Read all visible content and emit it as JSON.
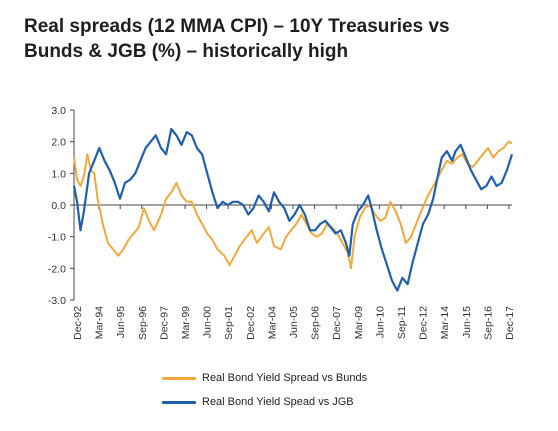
{
  "title_line1": "Real spreads (12 MMA CPI) – 10Y Treasuries vs",
  "title_line2": "Bunds & JGB (%) – historically high",
  "chart_data": {
    "type": "line",
    "title": "Real spreads (12 MMA CPI) – 10Y Treasuries vs Bunds & JGB (%) – historically high",
    "xlabel": "",
    "ylabel": "",
    "ylim": [
      -3.0,
      3.0
    ],
    "yticks": [
      "3.0",
      "2.0",
      "1.0",
      "0.0",
      "-1.0",
      "-2.0",
      "-3.0"
    ],
    "ytick_values": [
      3,
      2,
      1,
      0,
      -1,
      -2,
      -3
    ],
    "xticks": [
      "Dec-92",
      "Mar-94",
      "Jun-95",
      "Sep-96",
      "Dec-97",
      "Mar-99",
      "Jun-00",
      "Sep-01",
      "Dec-02",
      "Mar-04",
      "Jun-05",
      "Sep-06",
      "Dec-07",
      "Mar-09",
      "Jun-10",
      "Sep-11",
      "Dec-12",
      "Mar-14",
      "Jun-15",
      "Sep-16",
      "Dec-17"
    ],
    "x_range": [
      1992.92,
      2018.5
    ],
    "grid": false,
    "legend_position": "bottom",
    "series": [
      {
        "name": "Real Bond Yield Spread vs Bunds",
        "color": "#F2A93B",
        "points": [
          [
            1992.92,
            1.5
          ],
          [
            1993.1,
            0.8
          ],
          [
            1993.3,
            0.6
          ],
          [
            1993.5,
            0.9
          ],
          [
            1993.7,
            1.6
          ],
          [
            1993.9,
            1.1
          ],
          [
            1994.1,
            1.0
          ],
          [
            1994.3,
            0.2
          ],
          [
            1994.6,
            -0.6
          ],
          [
            1994.9,
            -1.2
          ],
          [
            1995.2,
            -1.4
          ],
          [
            1995.5,
            -1.6
          ],
          [
            1995.8,
            -1.4
          ],
          [
            1996.1,
            -1.1
          ],
          [
            1996.4,
            -0.9
          ],
          [
            1996.7,
            -0.7
          ],
          [
            1997.0,
            -0.1
          ],
          [
            1997.3,
            -0.5
          ],
          [
            1997.6,
            -0.8
          ],
          [
            1998.0,
            -0.3
          ],
          [
            1998.3,
            0.2
          ],
          [
            1998.6,
            0.4
          ],
          [
            1998.9,
            0.7
          ],
          [
            1999.2,
            0.3
          ],
          [
            1999.5,
            0.1
          ],
          [
            1999.8,
            0.1
          ],
          [
            2000.1,
            -0.3
          ],
          [
            2000.4,
            -0.6
          ],
          [
            2000.7,
            -0.9
          ],
          [
            2001.0,
            -1.1
          ],
          [
            2001.3,
            -1.4
          ],
          [
            2001.7,
            -1.6
          ],
          [
            2002.0,
            -1.9
          ],
          [
            2002.3,
            -1.6
          ],
          [
            2002.6,
            -1.3
          ],
          [
            2003.0,
            -1.0
          ],
          [
            2003.3,
            -0.8
          ],
          [
            2003.6,
            -1.2
          ],
          [
            2004.0,
            -0.9
          ],
          [
            2004.3,
            -0.7
          ],
          [
            2004.6,
            -1.3
          ],
          [
            2005.0,
            -1.4
          ],
          [
            2005.3,
            -1.0
          ],
          [
            2005.6,
            -0.8
          ],
          [
            2005.9,
            -0.6
          ],
          [
            2006.2,
            -0.3
          ],
          [
            2006.5,
            -0.6
          ],
          [
            2006.8,
            -0.9
          ],
          [
            2007.1,
            -1.0
          ],
          [
            2007.4,
            -0.9
          ],
          [
            2007.7,
            -0.6
          ],
          [
            2008.0,
            -0.7
          ],
          [
            2008.3,
            -0.9
          ],
          [
            2008.6,
            -1.2
          ],
          [
            2008.9,
            -1.5
          ],
          [
            2009.1,
            -2.0
          ],
          [
            2009.3,
            -1.0
          ],
          [
            2009.6,
            -0.4
          ],
          [
            2009.9,
            -0.1
          ],
          [
            2010.2,
            0.0
          ],
          [
            2010.5,
            -0.3
          ],
          [
            2010.8,
            -0.5
          ],
          [
            2011.1,
            -0.4
          ],
          [
            2011.4,
            0.1
          ],
          [
            2011.7,
            -0.2
          ],
          [
            2012.0,
            -0.6
          ],
          [
            2012.3,
            -1.2
          ],
          [
            2012.6,
            -1.0
          ],
          [
            2012.9,
            -0.6
          ],
          [
            2013.2,
            -0.2
          ],
          [
            2013.5,
            0.2
          ],
          [
            2013.8,
            0.5
          ],
          [
            2014.1,
            0.8
          ],
          [
            2014.4,
            1.1
          ],
          [
            2014.7,
            1.4
          ],
          [
            2015.0,
            1.3
          ],
          [
            2015.3,
            1.5
          ],
          [
            2015.6,
            1.6
          ],
          [
            2015.9,
            1.3
          ],
          [
            2016.2,
            1.2
          ],
          [
            2016.5,
            1.4
          ],
          [
            2016.8,
            1.6
          ],
          [
            2017.1,
            1.8
          ],
          [
            2017.4,
            1.5
          ],
          [
            2017.7,
            1.7
          ],
          [
            2018.0,
            1.8
          ],
          [
            2018.3,
            2.0
          ],
          [
            2018.5,
            1.95
          ]
        ]
      },
      {
        "name": "Real Bond Yield Spead vs JGB",
        "color": "#1F5FAE",
        "points": [
          [
            1992.92,
            0.6
          ],
          [
            1993.1,
            0.1
          ],
          [
            1993.3,
            -0.8
          ],
          [
            1993.5,
            -0.2
          ],
          [
            1993.8,
            1.0
          ],
          [
            1994.1,
            1.4
          ],
          [
            1994.4,
            1.8
          ],
          [
            1994.7,
            1.4
          ],
          [
            1995.0,
            1.1
          ],
          [
            1995.3,
            0.7
          ],
          [
            1995.6,
            0.2
          ],
          [
            1995.9,
            0.7
          ],
          [
            1996.2,
            0.8
          ],
          [
            1996.5,
            1.0
          ],
          [
            1996.8,
            1.4
          ],
          [
            1997.1,
            1.8
          ],
          [
            1997.4,
            2.0
          ],
          [
            1997.7,
            2.2
          ],
          [
            1998.0,
            1.8
          ],
          [
            1998.3,
            1.6
          ],
          [
            1998.6,
            2.4
          ],
          [
            1998.9,
            2.2
          ],
          [
            1999.2,
            1.9
          ],
          [
            1999.5,
            2.3
          ],
          [
            1999.8,
            2.2
          ],
          [
            2000.1,
            1.8
          ],
          [
            2000.4,
            1.6
          ],
          [
            2000.7,
            1.0
          ],
          [
            2001.0,
            0.4
          ],
          [
            2001.3,
            -0.1
          ],
          [
            2001.6,
            0.1
          ],
          [
            2001.9,
            0.0
          ],
          [
            2002.2,
            0.1
          ],
          [
            2002.5,
            0.1
          ],
          [
            2002.8,
            0.0
          ],
          [
            2003.1,
            -0.3
          ],
          [
            2003.4,
            -0.1
          ],
          [
            2003.7,
            0.3
          ],
          [
            2004.0,
            0.1
          ],
          [
            2004.3,
            -0.2
          ],
          [
            2004.6,
            0.4
          ],
          [
            2004.9,
            0.1
          ],
          [
            2005.2,
            -0.1
          ],
          [
            2005.5,
            -0.5
          ],
          [
            2005.8,
            -0.3
          ],
          [
            2006.1,
            0.0
          ],
          [
            2006.4,
            -0.3
          ],
          [
            2006.7,
            -0.8
          ],
          [
            2007.0,
            -0.8
          ],
          [
            2007.3,
            -0.6
          ],
          [
            2007.6,
            -0.5
          ],
          [
            2007.9,
            -0.7
          ],
          [
            2008.2,
            -0.9
          ],
          [
            2008.5,
            -0.8
          ],
          [
            2008.8,
            -1.2
          ],
          [
            2009.0,
            -1.6
          ],
          [
            2009.2,
            -0.6
          ],
          [
            2009.5,
            -0.2
          ],
          [
            2009.8,
            0.0
          ],
          [
            2010.1,
            0.3
          ],
          [
            2010.3,
            -0.1
          ],
          [
            2010.6,
            -0.8
          ],
          [
            2010.9,
            -1.4
          ],
          [
            2011.2,
            -1.9
          ],
          [
            2011.5,
            -2.4
          ],
          [
            2011.8,
            -2.7
          ],
          [
            2012.1,
            -2.3
          ],
          [
            2012.4,
            -2.5
          ],
          [
            2012.7,
            -1.8
          ],
          [
            2013.0,
            -1.2
          ],
          [
            2013.3,
            -0.6
          ],
          [
            2013.6,
            -0.3
          ],
          [
            2013.9,
            0.2
          ],
          [
            2014.2,
            1.0
          ],
          [
            2014.4,
            1.5
          ],
          [
            2014.7,
            1.7
          ],
          [
            2015.0,
            1.4
          ],
          [
            2015.2,
            1.7
          ],
          [
            2015.5,
            1.9
          ],
          [
            2015.8,
            1.5
          ],
          [
            2016.1,
            1.1
          ],
          [
            2016.4,
            0.8
          ],
          [
            2016.7,
            0.5
          ],
          [
            2017.0,
            0.6
          ],
          [
            2017.3,
            0.9
          ],
          [
            2017.6,
            0.6
          ],
          [
            2017.9,
            0.7
          ],
          [
            2018.2,
            1.1
          ],
          [
            2018.5,
            1.6
          ]
        ]
      }
    ]
  }
}
